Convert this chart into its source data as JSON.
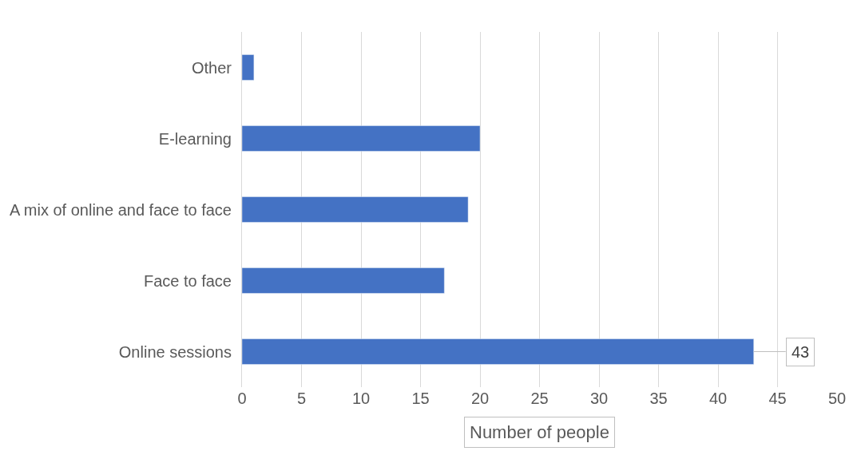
{
  "chart_data": {
    "type": "bar",
    "orientation": "horizontal",
    "categories": [
      "Other",
      "E-learning",
      "A mix of online and face to face",
      "Face to face",
      "Online sessions"
    ],
    "values": [
      1,
      20,
      19,
      17,
      43
    ],
    "value_labels": [
      null,
      null,
      null,
      null,
      "43"
    ],
    "color": "#4472c4",
    "xlabel": "Number of people",
    "xlim": [
      0,
      50
    ],
    "xticks": [
      0,
      5,
      10,
      15,
      20,
      25,
      30,
      35,
      40,
      45,
      50
    ],
    "grid": "x"
  }
}
